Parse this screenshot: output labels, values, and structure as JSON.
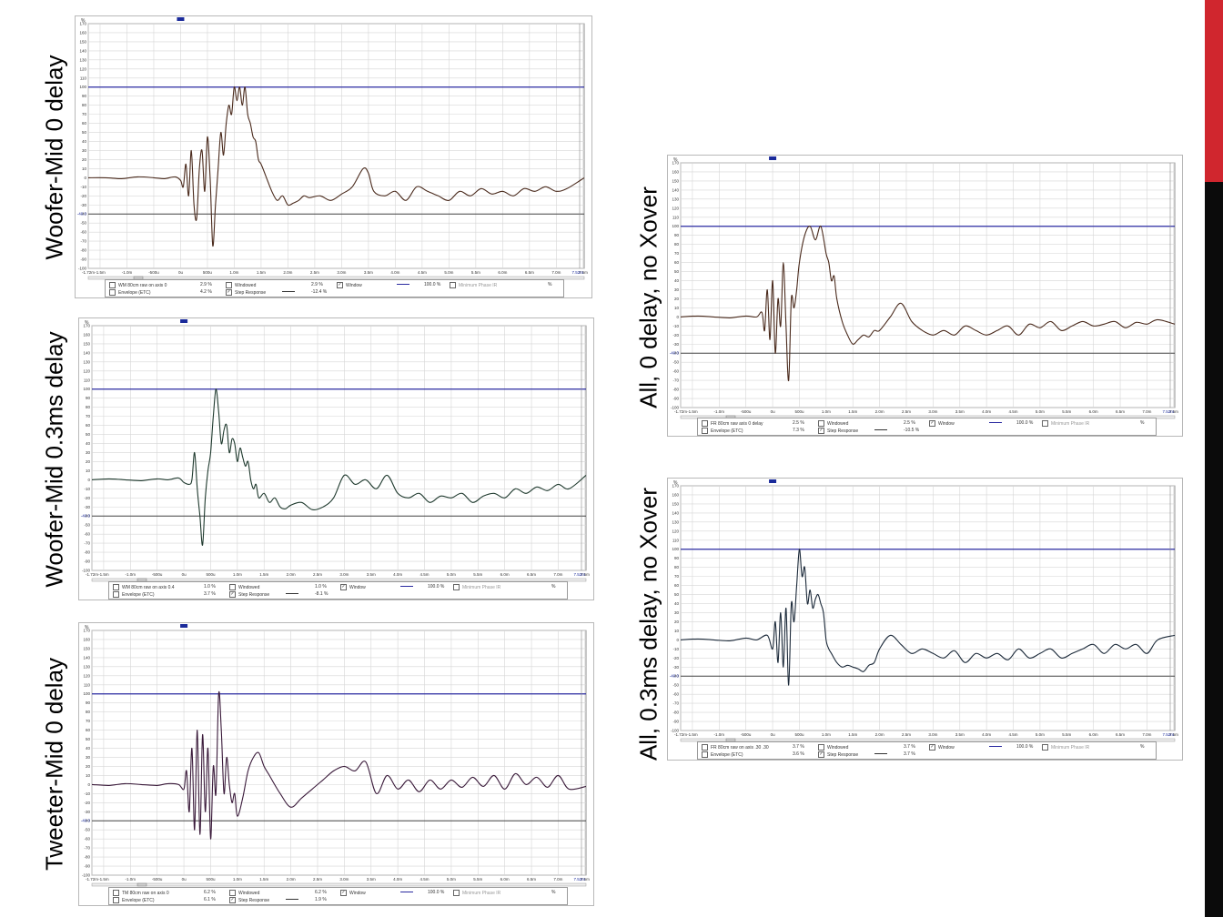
{
  "side_bar": {
    "accent_color": "#d0262e",
    "dark_color": "#0b0b0b"
  },
  "labels": {
    "p1": "Woofer-Mid 0 delay",
    "p2": "Woofer-Mid 0.3ms delay",
    "p3": "Tweeter-Mid 0 delay",
    "p4": "All, 0 delay, no Xover",
    "p5": "All, 0.3ms delay, no Xover"
  },
  "common_axes": {
    "y_unit": "%",
    "y_ticks": [
      "170",
      "160",
      "150",
      "140",
      "130",
      "120",
      "110",
      "100",
      "90",
      "80",
      "70",
      "60",
      "50",
      "40",
      "30",
      "20",
      "10",
      "0",
      "-10",
      "-20",
      "-30",
      "-40",
      "-50",
      "-60",
      "-70",
      "-80",
      "-90",
      "-100"
    ],
    "x_ticks": [
      "-1.72m",
      "-1.5m",
      "-1.0m",
      "-500u",
      "0u",
      "500u",
      "1.0m",
      "1.5m",
      "2.0m",
      "2.5m",
      "3.0m",
      "3.5m",
      "4.0m",
      "4.5m",
      "5.0m",
      "5.5m",
      "6.0m",
      "6.5m",
      "7.0m",
      "7.5m"
    ],
    "x_end_label": "7.52m",
    "marker_upper": "100",
    "marker_lower": "-40.0"
  },
  "legends": {
    "p1": {
      "name": "WM 80cm raw on axis 0",
      "v1": "2.9 %",
      "windowed": "Windowed",
      "v2": "2.9 %",
      "window": "Window",
      "v3": "100.0 %",
      "mp": "Minimum Phase IR",
      "v4": "%",
      "env": "Envelope (ETC)",
      "v5": "4.2 %",
      "step": "Step Response",
      "v6": "-12.4 %"
    },
    "p2": {
      "name": "WM 80cm raw on axis 0.4",
      "v1": "1.0 %",
      "windowed": "Windowed",
      "v2": "1.0 %",
      "window": "Window",
      "v3": "100.0 %",
      "mp": "Minimum Phase IR",
      "v4": "%",
      "env": "Envelope (ETC)",
      "v5": "3.7 %",
      "step": "Step Response",
      "v6": "-8.1 %"
    },
    "p3": {
      "name": "TM 80cm raw on axis 0",
      "v1": "6.2 %",
      "windowed": "Windowed",
      "v2": "6.2 %",
      "window": "Window",
      "v3": "100.0 %",
      "mp": "Minimum Phase IR",
      "v4": "%",
      "env": "Envelope (ETC)",
      "v5": "6.1 %",
      "step": "Step Response",
      "v6": "1.9 %"
    },
    "p4": {
      "name": "FR 80cm raw axis 0 delay",
      "v1": "2.5 %",
      "windowed": "Windowed",
      "v2": "2.5 %",
      "window": "Window",
      "v3": "100.0 %",
      "mp": "Minimum Phase IR",
      "v4": "%",
      "env": "Envelope (ETC)",
      "v5": "7.3 %",
      "step": "Step Response",
      "v6": "-10.5 %"
    },
    "p5": {
      "name": "FR 80cm raw on axis .30 .30",
      "v1": "3.7 %",
      "windowed": "Windowed",
      "v2": "3.7 %",
      "window": "Window",
      "v3": "100.0 %",
      "mp": "Minimum Phase IR",
      "v4": "%",
      "env": "Envelope (ETC)",
      "v5": "3.6 %",
      "step": "Step Response",
      "v6": "3.7 %"
    }
  },
  "chart_data": [
    {
      "type": "line",
      "panel": "p1",
      "color": "#4a2a1c",
      "xlabel": "",
      "ylabel": "%",
      "xlim": [
        -1.72,
        7.52
      ],
      "ylim": [
        -100,
        170
      ],
      "x": [
        -1.72,
        -1.4,
        -1.1,
        -0.8,
        -0.5,
        -0.3,
        -0.1,
        0.0,
        0.05,
        0.1,
        0.15,
        0.2,
        0.25,
        0.3,
        0.35,
        0.4,
        0.45,
        0.5,
        0.55,
        0.6,
        0.65,
        0.7,
        0.75,
        0.8,
        0.85,
        0.9,
        0.95,
        1.0,
        1.05,
        1.1,
        1.15,
        1.2,
        1.25,
        1.3,
        1.35,
        1.4,
        1.45,
        1.5,
        1.6,
        1.7,
        1.8,
        1.9,
        2.0,
        2.1,
        2.2,
        2.3,
        2.4,
        2.6,
        2.8,
        3.0,
        3.2,
        3.4,
        3.5,
        3.6,
        3.8,
        4.0,
        4.2,
        4.4,
        4.6,
        4.8,
        5.0,
        5.2,
        5.4,
        5.6,
        5.8,
        6.0,
        6.2,
        6.4,
        6.6,
        6.8,
        7.0,
        7.2,
        7.52
      ],
      "values": [
        0,
        0,
        -1,
        1,
        0,
        -1,
        1,
        -3,
        -10,
        15,
        -20,
        30,
        -30,
        -45,
        10,
        30,
        -15,
        45,
        0,
        -75,
        -30,
        10,
        50,
        25,
        60,
        80,
        70,
        100,
        85,
        100,
        80,
        100,
        70,
        60,
        45,
        40,
        20,
        15,
        0,
        -15,
        -25,
        -20,
        -30,
        -28,
        -25,
        -20,
        -22,
        -20,
        -25,
        -18,
        -10,
        10,
        5,
        -15,
        -20,
        -15,
        -25,
        -10,
        -15,
        -20,
        -25,
        -15,
        -20,
        -12,
        -18,
        -15,
        -20,
        -12,
        -15,
        -10,
        -15,
        -12,
        0
      ]
    },
    {
      "type": "line",
      "panel": "p2",
      "color": "#1f3a2e",
      "xlabel": "",
      "ylabel": "%",
      "xlim": [
        -1.72,
        7.52
      ],
      "ylim": [
        -100,
        170
      ],
      "x": [
        -1.72,
        -1.4,
        -1.1,
        -0.8,
        -0.5,
        -0.3,
        -0.1,
        0.0,
        0.1,
        0.15,
        0.2,
        0.25,
        0.3,
        0.35,
        0.4,
        0.45,
        0.5,
        0.55,
        0.6,
        0.65,
        0.7,
        0.75,
        0.8,
        0.85,
        0.9,
        0.95,
        1.0,
        1.05,
        1.1,
        1.15,
        1.2,
        1.25,
        1.3,
        1.35,
        1.4,
        1.5,
        1.6,
        1.7,
        1.8,
        1.9,
        2.0,
        2.2,
        2.4,
        2.6,
        2.8,
        3.0,
        3.2,
        3.4,
        3.6,
        3.8,
        4.0,
        4.2,
        4.4,
        4.6,
        4.8,
        5.0,
        5.2,
        5.4,
        5.6,
        5.8,
        6.0,
        6.2,
        6.4,
        6.6,
        6.8,
        7.0,
        7.2,
        7.52
      ],
      "values": [
        0,
        1,
        0,
        -1,
        1,
        0,
        2,
        -3,
        -5,
        0,
        30,
        -10,
        -40,
        -72,
        -20,
        10,
        30,
        70,
        100,
        75,
        40,
        55,
        60,
        30,
        45,
        40,
        20,
        35,
        25,
        15,
        20,
        0,
        -10,
        -5,
        -20,
        -15,
        -25,
        -20,
        -30,
        -32,
        -28,
        -25,
        -33,
        -30,
        -20,
        5,
        -5,
        0,
        -10,
        5,
        -15,
        -20,
        -15,
        -25,
        -18,
        -20,
        -15,
        -25,
        -18,
        -15,
        -20,
        -10,
        -15,
        -8,
        -12,
        -5,
        -10,
        5
      ]
    },
    {
      "type": "line",
      "panel": "p3",
      "color": "#3a1a3a",
      "xlabel": "",
      "ylabel": "%",
      "xlim": [
        -1.72,
        7.52
      ],
      "ylim": [
        -100,
        170
      ],
      "x": [
        -1.72,
        -1.4,
        -1.1,
        -0.8,
        -0.5,
        -0.3,
        -0.1,
        0.0,
        0.05,
        0.1,
        0.15,
        0.2,
        0.25,
        0.3,
        0.35,
        0.4,
        0.45,
        0.5,
        0.55,
        0.6,
        0.65,
        0.7,
        0.75,
        0.8,
        0.85,
        0.9,
        0.95,
        1.0,
        1.1,
        1.2,
        1.3,
        1.4,
        1.5,
        1.6,
        1.8,
        2.0,
        2.2,
        2.4,
        2.6,
        2.8,
        3.0,
        3.2,
        3.4,
        3.6,
        3.8,
        4.0,
        4.2,
        4.4,
        4.6,
        4.8,
        5.0,
        5.2,
        5.4,
        5.6,
        5.8,
        6.0,
        6.2,
        6.4,
        6.6,
        6.8,
        7.0,
        7.2,
        7.52
      ],
      "values": [
        0,
        -1,
        1,
        0,
        -1,
        1,
        0,
        -5,
        15,
        -30,
        40,
        -50,
        60,
        -55,
        55,
        -30,
        40,
        -60,
        20,
        -10,
        100,
        60,
        -10,
        30,
        0,
        -20,
        -10,
        -35,
        -15,
        15,
        30,
        35,
        20,
        10,
        -10,
        -25,
        -15,
        -5,
        5,
        15,
        20,
        15,
        25,
        -10,
        10,
        -5,
        5,
        -8,
        5,
        -5,
        5,
        -3,
        8,
        -2,
        10,
        -5,
        12,
        0,
        8,
        -3,
        10,
        -5,
        -2
      ]
    },
    {
      "type": "line",
      "panel": "p4",
      "color": "#4a2a1c",
      "xlabel": "",
      "ylabel": "%",
      "xlim": [
        -1.72,
        7.52
      ],
      "ylim": [
        -100,
        170
      ],
      "x": [
        -1.72,
        -1.4,
        -1.1,
        -0.8,
        -0.5,
        -0.3,
        -0.2,
        -0.15,
        -0.1,
        -0.05,
        0.0,
        0.05,
        0.1,
        0.15,
        0.2,
        0.25,
        0.3,
        0.35,
        0.4,
        0.45,
        0.5,
        0.6,
        0.7,
        0.8,
        0.9,
        1.0,
        1.05,
        1.1,
        1.15,
        1.2,
        1.3,
        1.4,
        1.5,
        1.6,
        1.7,
        1.8,
        1.9,
        2.0,
        2.2,
        2.4,
        2.6,
        2.8,
        3.0,
        3.2,
        3.4,
        3.6,
        3.8,
        4.0,
        4.2,
        4.4,
        4.6,
        4.8,
        5.0,
        5.2,
        5.4,
        5.6,
        5.8,
        6.0,
        6.2,
        6.4,
        6.6,
        6.8,
        7.0,
        7.2,
        7.52
      ],
      "values": [
        0,
        1,
        0,
        -1,
        1,
        0,
        5,
        -15,
        30,
        -25,
        40,
        -40,
        20,
        -10,
        60,
        -10,
        -70,
        20,
        10,
        30,
        60,
        90,
        100,
        85,
        100,
        70,
        60,
        40,
        45,
        20,
        -5,
        -20,
        -30,
        -25,
        -20,
        -22,
        -15,
        -15,
        0,
        15,
        -5,
        -15,
        -20,
        -15,
        -20,
        -10,
        -15,
        -20,
        -15,
        -10,
        -20,
        -8,
        -12,
        -5,
        -15,
        -10,
        -5,
        -10,
        -8,
        -5,
        -12,
        -6,
        -8,
        -3,
        -8
      ]
    },
    {
      "type": "line",
      "panel": "p5",
      "color": "#1c2a3a",
      "xlabel": "",
      "ylabel": "%",
      "xlim": [
        -1.72,
        7.52
      ],
      "ylim": [
        -100,
        170
      ],
      "x": [
        -1.72,
        -1.4,
        -1.1,
        -0.8,
        -0.5,
        -0.3,
        -0.1,
        0.0,
        0.05,
        0.1,
        0.15,
        0.2,
        0.25,
        0.3,
        0.35,
        0.4,
        0.45,
        0.5,
        0.55,
        0.6,
        0.65,
        0.7,
        0.75,
        0.8,
        0.85,
        0.9,
        0.95,
        1.0,
        1.05,
        1.1,
        1.2,
        1.3,
        1.4,
        1.5,
        1.6,
        1.7,
        1.8,
        1.9,
        2.0,
        2.2,
        2.4,
        2.6,
        2.8,
        3.0,
        3.2,
        3.4,
        3.6,
        3.8,
        4.0,
        4.2,
        4.4,
        4.6,
        4.8,
        5.0,
        5.2,
        5.4,
        5.6,
        5.8,
        6.0,
        6.2,
        6.4,
        6.6,
        6.8,
        7.0,
        7.2,
        7.52
      ],
      "values": [
        0,
        1,
        0,
        -1,
        2,
        0,
        5,
        -10,
        20,
        -25,
        30,
        -30,
        35,
        -50,
        40,
        20,
        60,
        100,
        70,
        80,
        40,
        55,
        35,
        45,
        50,
        40,
        30,
        0,
        -10,
        -15,
        -25,
        -30,
        -28,
        -30,
        -32,
        -35,
        -28,
        -25,
        -10,
        5,
        -5,
        -15,
        -10,
        -15,
        -20,
        -12,
        -25,
        -15,
        -20,
        -15,
        -22,
        -10,
        -20,
        -15,
        -10,
        -20,
        -15,
        -10,
        -5,
        -15,
        -5,
        -10,
        -5,
        -15,
        0,
        5
      ]
    }
  ]
}
